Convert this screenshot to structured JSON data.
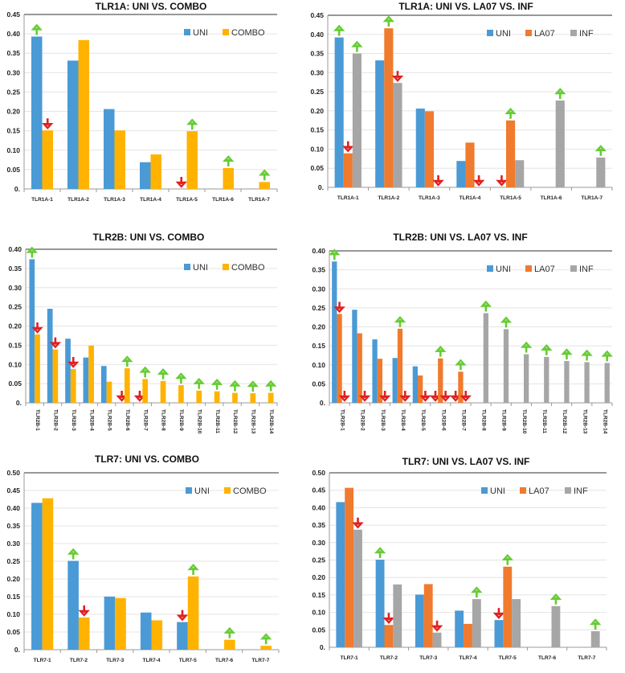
{
  "colors": {
    "UNI": "#4a9ad6",
    "COMBO": "#ffb300",
    "LA07": "#f07a2e",
    "INF": "#a6a6a6",
    "up": "#66cc33",
    "down": "#e02020"
  },
  "chart_data": [
    {
      "type": "bar",
      "title": "TLR1A:  UNI  VS. COMBO",
      "ylim": [
        0,
        0.45
      ],
      "yticks": [
        "0.",
        "0.05",
        "0.10",
        "0.15",
        "0.20",
        "0.25",
        "0.30",
        "0.35",
        "0.40",
        "0.45"
      ],
      "categories": [
        "TLR1A-1",
        "TLR1A-2",
        "TLR1A-3",
        "TLR1A-4",
        "TLR1A-5",
        "TLR1A-6",
        "TLR1A-7"
      ],
      "rotate_labels": false,
      "legend": "top-right",
      "series": [
        {
          "name": "UNI",
          "values": [
            0.393,
            0.331,
            0.206,
            0.069,
            0,
            0,
            0
          ],
          "arrows": [
            "up",
            null,
            null,
            null,
            "down",
            null,
            null
          ]
        },
        {
          "name": "COMBO",
          "values": [
            0.151,
            0.384,
            0.151,
            0.089,
            0.149,
            0.054,
            0.018
          ],
          "arrows": [
            "down",
            null,
            null,
            null,
            "up",
            "up",
            "up"
          ]
        }
      ]
    },
    {
      "type": "bar",
      "title": "TLR1A:  UNI  VS. LA07  VS. INF",
      "ylim": [
        0,
        0.45
      ],
      "yticks": [
        "0.",
        "0.05",
        "0.10",
        "0.15",
        "0.20",
        "0.25",
        "0.30",
        "0.35",
        "0.40",
        "0.45"
      ],
      "categories": [
        "TLR1A-1",
        "TLR1A-2",
        "TLR1A-3",
        "TLR1A-4",
        "TLR1A-5",
        "TLR1A-6",
        "TLR1A-7"
      ],
      "rotate_labels": false,
      "legend": "top-right",
      "series": [
        {
          "name": "UNI",
          "values": [
            0.392,
            0.332,
            0.206,
            0.069,
            0,
            0,
            0
          ],
          "arrows": [
            "up",
            null,
            null,
            null,
            "down",
            null,
            null
          ]
        },
        {
          "name": "LA07",
          "values": [
            0.089,
            0.416,
            0.199,
            0.117,
            0.175,
            0,
            0
          ],
          "arrows": [
            "down",
            "up",
            null,
            null,
            "up",
            null,
            null
          ]
        },
        {
          "name": "INF",
          "values": [
            0.35,
            0.273,
            0,
            0,
            0.071,
            0.227,
            0.078
          ],
          "arrows": [
            "up",
            "down",
            "down",
            "down",
            null,
            "up",
            "up"
          ]
        }
      ]
    },
    {
      "type": "bar",
      "title": "TLR2B:  UNI  VS. COMBO",
      "ylim": [
        0,
        0.4
      ],
      "yticks": [
        "0.",
        "0.05",
        "0.10",
        "0.15",
        "0.20",
        "0.25",
        "0.30",
        "0.35",
        "0.40"
      ],
      "categories": [
        "TLR2B-1",
        "TLR2B-2",
        "TLR2B-3",
        "TLR2B-4",
        "TLR2B-5",
        "TLR2B-6",
        "TLR2B-7",
        "TLR2B-8",
        "TLR2B-9",
        "TLR2B-10",
        "TLR2B-11",
        "TLR2B-12",
        "TLR2B-13",
        "TLR2B-14"
      ],
      "rotate_labels": true,
      "legend": "top-right",
      "series": [
        {
          "name": "UNI",
          "values": [
            0.374,
            0.245,
            0.167,
            0.118,
            0.096,
            0,
            0,
            0,
            0,
            0,
            0,
            0,
            0,
            0
          ],
          "arrows": [
            "up",
            null,
            null,
            null,
            null,
            "down",
            "down",
            null,
            null,
            null,
            null,
            null,
            null,
            null
          ]
        },
        {
          "name": "COMBO",
          "values": [
            0.178,
            0.139,
            0.088,
            0.149,
            0.055,
            0.09,
            0.062,
            0.057,
            0.046,
            0.032,
            0.03,
            0.026,
            0.025,
            0.026
          ],
          "arrows": [
            "down",
            "down",
            "down",
            null,
            null,
            "up",
            "up",
            "up",
            "up",
            "up",
            "up",
            "up",
            "up",
            "up"
          ]
        }
      ]
    },
    {
      "type": "bar",
      "title": "TLR2B:  UNI  VS. LA07  VS. INF",
      "ylim": [
        0,
        0.4
      ],
      "yticks": [
        "0.",
        "0.05",
        "0.10",
        "0.15",
        "0.20",
        "0.25",
        "0.30",
        "0.35",
        "0.40"
      ],
      "categories": [
        "TLR2B-1",
        "TLR2B-2",
        "TLR2B-3",
        "TLR2B-4",
        "TLR2B-5",
        "TLR2B-6",
        "TLR2B-7",
        "TLR2B-8",
        "TLR2B-9",
        "TLR2B-10",
        "TLR2B-11",
        "TLR2B-12",
        "TLR2B-13",
        "TLR2B-14"
      ],
      "rotate_labels": true,
      "legend": "top-right",
      "series": [
        {
          "name": "UNI",
          "values": [
            0.372,
            0.245,
            0.167,
            0.118,
            0.096,
            0,
            0,
            0,
            0,
            0,
            0,
            0,
            0,
            0
          ],
          "arrows": [
            "up",
            null,
            null,
            null,
            null,
            "down",
            "down",
            null,
            null,
            null,
            null,
            null,
            null,
            null
          ]
        },
        {
          "name": "LA07",
          "values": [
            0.234,
            0.183,
            0.116,
            0.195,
            0.072,
            0.117,
            0.082,
            0,
            0,
            0,
            0,
            0,
            0,
            0
          ],
          "arrows": [
            "down",
            null,
            null,
            "up",
            null,
            "up",
            "up",
            null,
            null,
            null,
            null,
            null,
            null,
            null
          ]
        },
        {
          "name": "INF",
          "values": [
            0,
            0,
            0,
            0,
            0,
            0,
            0,
            0.236,
            0.194,
            0.128,
            0.121,
            0.11,
            0.107,
            0.105
          ],
          "arrows": [
            "down",
            "down",
            "down",
            "down",
            "down",
            "down",
            "down",
            "up",
            "up",
            "up",
            "up",
            "up",
            "up",
            "up"
          ]
        }
      ]
    },
    {
      "type": "bar",
      "title": "TLR7:  UNI  VS. COMBO",
      "ylim": [
        0,
        0.5
      ],
      "yticks": [
        "0.",
        "0.05",
        "0.10",
        "0.15",
        "0.20",
        "0.25",
        "0.30",
        "0.35",
        "0.40",
        "0.45",
        "0.50"
      ],
      "categories": [
        "TLR7-1",
        "TLR7-2",
        "TLR7-3",
        "TLR7-4",
        "TLR7-5",
        "TLR7-6",
        "TLR7-7"
      ],
      "rotate_labels": false,
      "legend": "top-right",
      "series": [
        {
          "name": "UNI",
          "values": [
            0.415,
            0.251,
            0.15,
            0.105,
            0.078,
            0,
            0
          ],
          "arrows": [
            null,
            "up",
            null,
            null,
            "down",
            null,
            null
          ]
        },
        {
          "name": "COMBO",
          "values": [
            0.428,
            0.091,
            0.146,
            0.083,
            0.207,
            0.028,
            0.011
          ],
          "arrows": [
            null,
            "down",
            null,
            null,
            "up",
            "up",
            "up"
          ]
        }
      ]
    },
    {
      "type": "bar",
      "title": "TLR7:  UNI  VS. LA07  VS. INF",
      "ylim": [
        0,
        0.5
      ],
      "yticks": [
        "0.",
        "0.05",
        "0.10",
        "0.15",
        "0.20",
        "0.25",
        "0.30",
        "0.35",
        "0.40",
        "0.45",
        "0.50"
      ],
      "categories": [
        "TLR7-1",
        "TLR7-2",
        "TLR7-3",
        "TLR7-4",
        "TLR7-5",
        "TLR7-6",
        "TLR7-7"
      ],
      "rotate_labels": false,
      "legend": "top-right",
      "series": [
        {
          "name": "UNI",
          "values": [
            0.416,
            0.251,
            0.151,
            0.105,
            0.078,
            0,
            0
          ],
          "arrows": [
            null,
            "up",
            null,
            null,
            "down",
            null,
            null
          ]
        },
        {
          "name": "LA07",
          "values": [
            0.457,
            0.064,
            0.181,
            0.067,
            0.231,
            0,
            0
          ],
          "arrows": [
            null,
            "down",
            null,
            null,
            "up",
            null,
            null
          ]
        },
        {
          "name": "INF",
          "values": [
            0.337,
            0.18,
            0.042,
            0.138,
            0.138,
            0.118,
            0.046
          ],
          "arrows": [
            "down",
            null,
            "down",
            "up",
            null,
            "up",
            "up"
          ]
        }
      ]
    }
  ]
}
